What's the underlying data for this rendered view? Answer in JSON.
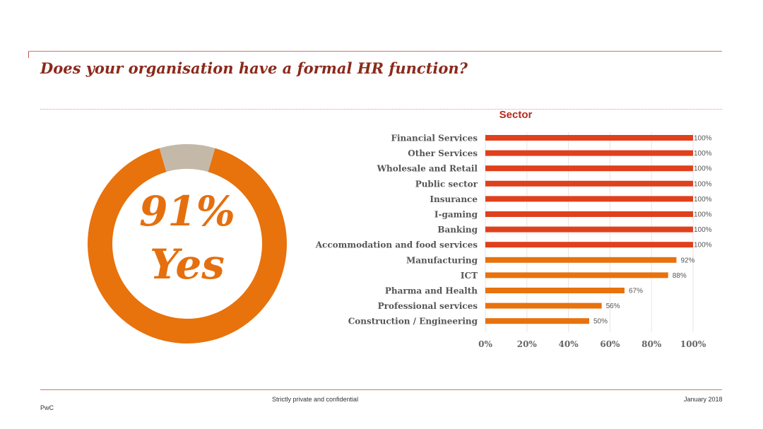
{
  "slide": {
    "title": "Does your organisation have a formal HR function?"
  },
  "donut": {
    "percent_label": "91%",
    "answer_label": "Yes",
    "yes_fraction": 0.91,
    "yes_color": "#E8720C",
    "no_color": "#C4B9A8"
  },
  "chart_data": {
    "type": "bar",
    "orientation": "horizontal",
    "title": "Sector",
    "categories": [
      "Financial Services",
      "Other Services",
      "Wholesale and Retail",
      "Public sector",
      "Insurance",
      "I-gaming",
      "Banking",
      "Accommodation and food services",
      "Manufacturing",
      "ICT",
      "Pharma and Health",
      "Professional services",
      "Construction / Engineering"
    ],
    "values": [
      100,
      100,
      100,
      100,
      100,
      100,
      100,
      100,
      92,
      88,
      67,
      56,
      50
    ],
    "value_labels": [
      "100%",
      "100%",
      "100%",
      "100%",
      "100%",
      "100%",
      "100%",
      "100%",
      "92%",
      "88%",
      "67%",
      "56%",
      "50%"
    ],
    "xlim": [
      0,
      100
    ],
    "x_ticks": [
      0,
      20,
      40,
      60,
      80,
      100
    ],
    "x_tick_labels": [
      "0%",
      "20%",
      "40%",
      "60%",
      "80%",
      "100%"
    ],
    "grid": true,
    "colors": {
      "full": "#E0401C",
      "partial": "#E8720C"
    }
  },
  "footer": {
    "company": "PwC",
    "confidential": "Strictly private and confidential",
    "date": "January 2018"
  }
}
